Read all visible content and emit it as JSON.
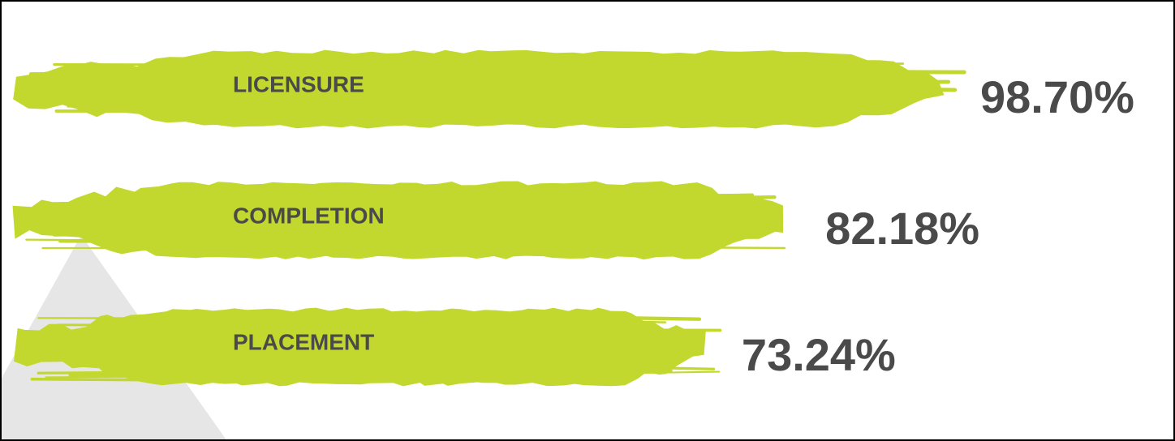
{
  "chart_data": {
    "type": "bar",
    "categories": [
      "LICENSURE",
      "COMPLETION",
      "PLACEMENT"
    ],
    "values": [
      98.7,
      82.18,
      73.24
    ],
    "value_labels": [
      "98.70%",
      "82.18%",
      "73.24%"
    ],
    "color": "#c2d82e"
  }
}
